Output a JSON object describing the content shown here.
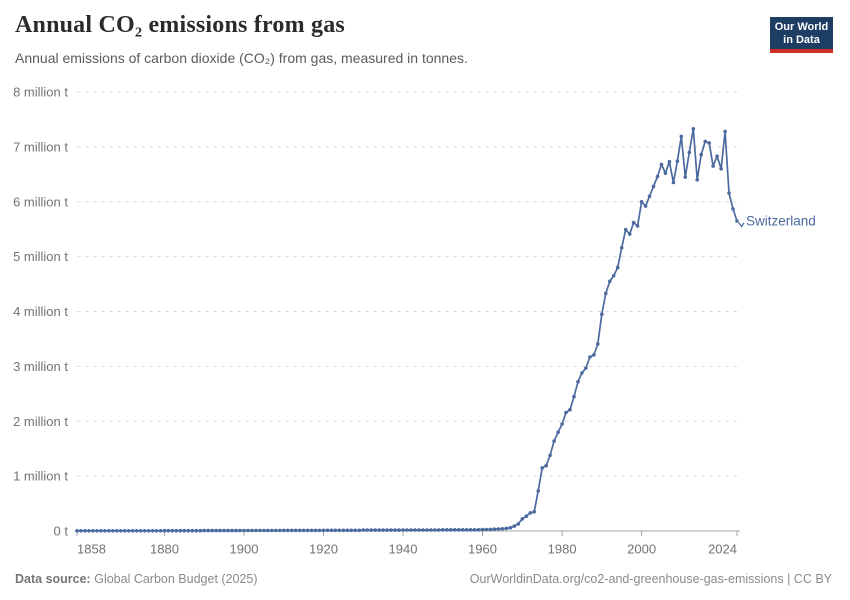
{
  "header": {
    "title": "Annual CO₂ emissions from gas",
    "subtitle": "Annual emissions of carbon dioxide (CO₂) from gas, measured in tonnes."
  },
  "logo": {
    "line1": "Our World",
    "line2": "in Data",
    "bg": "#1d3d63",
    "accent": "#cf2e27"
  },
  "footer": {
    "source_label": "Data source:",
    "source_text": "Global Carbon Budget (2025)",
    "credit": "OurWorldinData.org/co2-and-greenhouse-gas-emissions | CC BY"
  },
  "chart_data": {
    "type": "line",
    "title": "Annual CO₂ emissions from gas",
    "unit": "tonnes",
    "start_year": 1858,
    "end_year": 2024,
    "xlim": [
      1858,
      2024
    ],
    "ylim": [
      0,
      8000000
    ],
    "grid": "dashed-horizontal",
    "x_ticks": [
      1858,
      1880,
      1900,
      1920,
      1940,
      1960,
      1980,
      2000,
      2024
    ],
    "y_ticks": [
      {
        "value": 0,
        "label": "0 t"
      },
      {
        "value": 1,
        "label": "1 million t"
      },
      {
        "value": 2,
        "label": "2 million t"
      },
      {
        "value": 3,
        "label": "3 million t"
      },
      {
        "value": 4,
        "label": "4 million t"
      },
      {
        "value": 5,
        "label": "5 million t"
      },
      {
        "value": 6,
        "label": "6 million t"
      },
      {
        "value": 7,
        "label": "7 million t"
      },
      {
        "value": 8,
        "label": "8 million t"
      }
    ],
    "colors": {
      "grid": "#dcdcdc",
      "axis": "#a3a3a3",
      "tick_text": "#737373"
    },
    "series": [
      {
        "name": "Switzerland",
        "color": "#4c6a9f",
        "values_unit": "million tonnes",
        "values": [
          0.003,
          0.003,
          0.003,
          0.003,
          0.003,
          0.003,
          0.003,
          0.003,
          0.003,
          0.003,
          0.003,
          0.003,
          0.004,
          0.004,
          0.004,
          0.004,
          0.004,
          0.004,
          0.004,
          0.004,
          0.004,
          0.004,
          0.005,
          0.005,
          0.005,
          0.005,
          0.005,
          0.005,
          0.005,
          0.005,
          0.005,
          0.005,
          0.007,
          0.007,
          0.007,
          0.007,
          0.007,
          0.007,
          0.007,
          0.007,
          0.007,
          0.007,
          0.009,
          0.009,
          0.009,
          0.009,
          0.009,
          0.009,
          0.009,
          0.009,
          0.009,
          0.009,
          0.011,
          0.011,
          0.011,
          0.011,
          0.011,
          0.011,
          0.011,
          0.011,
          0.011,
          0.011,
          0.013,
          0.013,
          0.013,
          0.013,
          0.013,
          0.013,
          0.013,
          0.013,
          0.013,
          0.013,
          0.016,
          0.016,
          0.016,
          0.016,
          0.016,
          0.016,
          0.016,
          0.016,
          0.016,
          0.016,
          0.018,
          0.018,
          0.018,
          0.018,
          0.018,
          0.018,
          0.018,
          0.018,
          0.018,
          0.018,
          0.022,
          0.022,
          0.022,
          0.022,
          0.022,
          0.022,
          0.022,
          0.022,
          0.022,
          0.022,
          0.025,
          0.027,
          0.03,
          0.033,
          0.036,
          0.04,
          0.048,
          0.06,
          0.09,
          0.13,
          0.22,
          0.27,
          0.33,
          0.35,
          0.73,
          1.15,
          1.19,
          1.38,
          1.64,
          1.8,
          1.95,
          2.16,
          2.21,
          2.45,
          2.72,
          2.88,
          2.97,
          3.17,
          3.21,
          3.41,
          3.95,
          4.33,
          4.55,
          4.65,
          4.8,
          5.16,
          5.49,
          5.41,
          5.62,
          5.56,
          6.0,
          5.92,
          6.1,
          6.28,
          6.46,
          6.68,
          6.52,
          6.73,
          6.35,
          6.74,
          7.19,
          6.45,
          6.9,
          7.33,
          6.4,
          6.86,
          7.1,
          7.07,
          6.65,
          6.83,
          6.6,
          7.28,
          6.16,
          5.87,
          5.65
        ]
      }
    ]
  }
}
